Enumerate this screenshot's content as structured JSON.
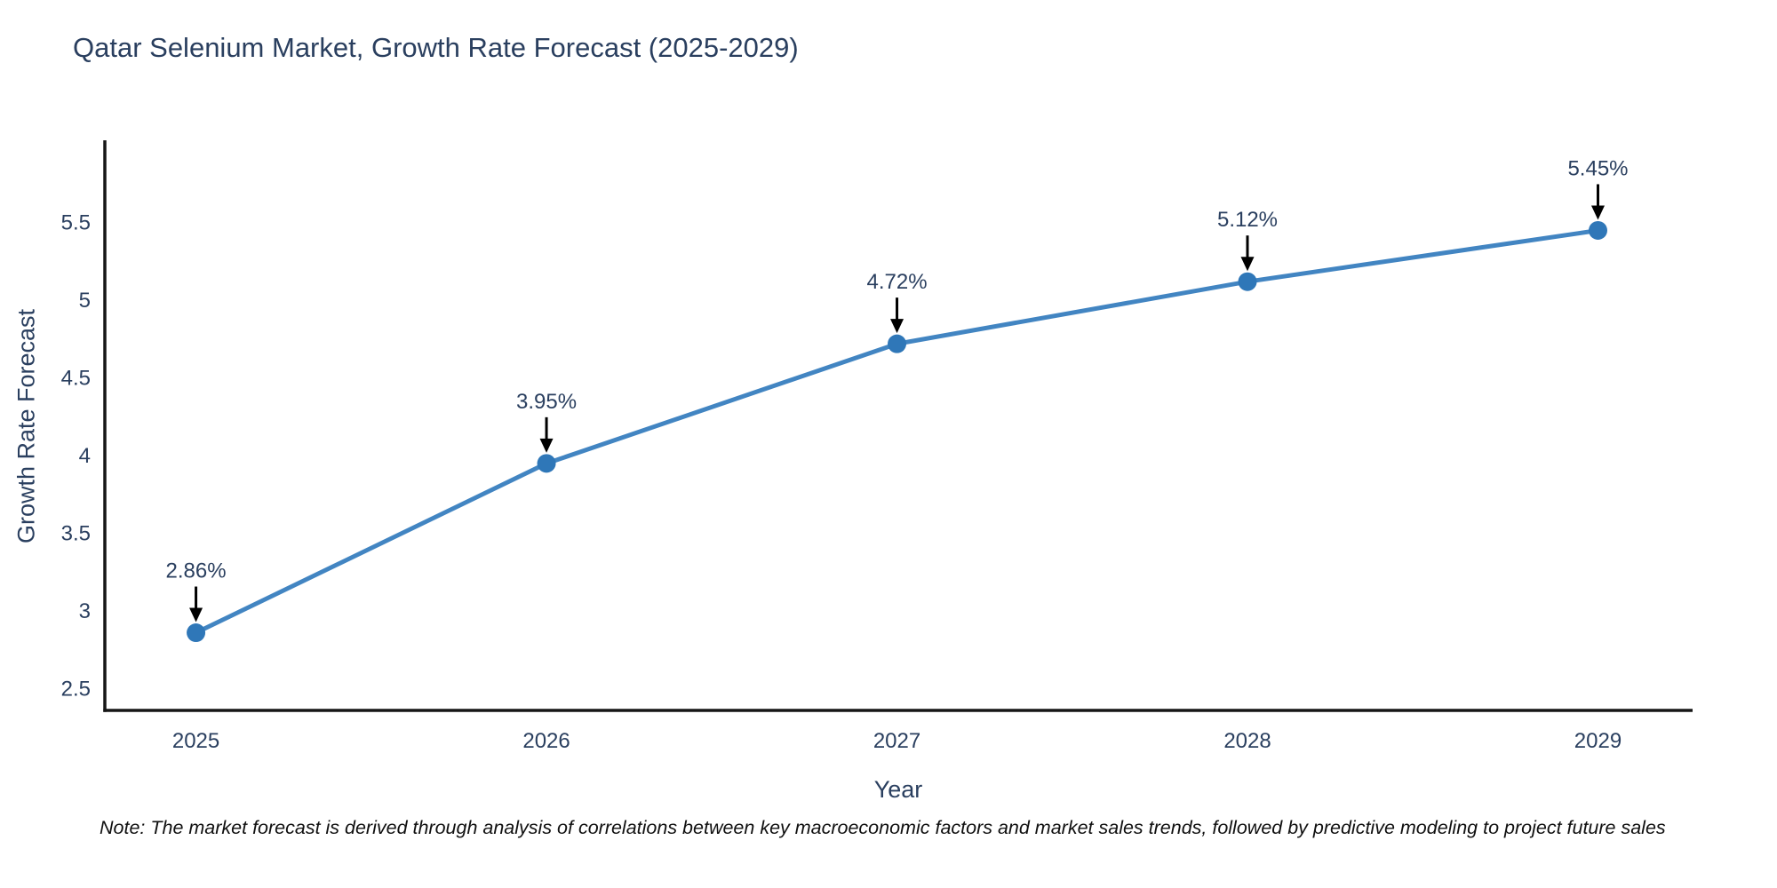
{
  "chart_data": {
    "type": "line",
    "title": "Qatar Selenium Market, Growth Rate Forecast (2025-2029)",
    "xlabel": "Year",
    "ylabel": "Growth Rate Forecast",
    "x": [
      2025,
      2026,
      2027,
      2028,
      2029
    ],
    "series": [
      {
        "name": "Growth Rate Forecast",
        "values": [
          2.86,
          3.95,
          4.72,
          5.12,
          5.45
        ]
      }
    ],
    "point_labels": [
      "2.86%",
      "3.95%",
      "4.72%",
      "5.12%",
      "5.45%"
    ],
    "yticks": [
      2.5,
      3,
      3.5,
      4,
      4.5,
      5,
      5.5
    ],
    "xlim": [
      2024.74,
      2029.27
    ],
    "ylim": [
      2.36,
      6.03
    ],
    "grid": false,
    "legend": "none",
    "colors": {
      "line": "#4285c2",
      "marker": "#2f77b8",
      "axis": "#161616",
      "text": "#2a3f5f",
      "annotation": "#2a3f5f",
      "arrow": "#000000"
    }
  },
  "note": "Note: The market forecast is derived through analysis of correlations between key macroeconomic factors and market sales trends, followed by predictive modeling to project future sales"
}
